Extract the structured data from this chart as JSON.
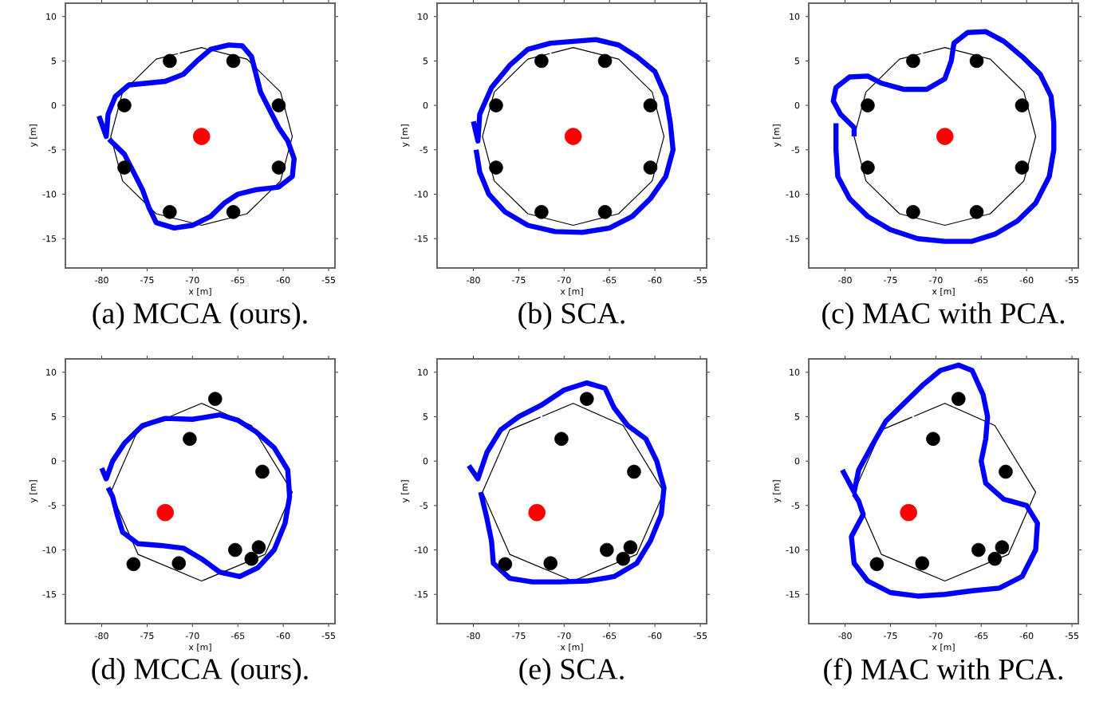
{
  "chart_data": [
    {
      "type": "line",
      "title": "(a) MCCA (ours).",
      "xlabel": "x [m]",
      "ylabel": "y [m]",
      "xlim": [
        -84,
        -54.3
      ],
      "ylim": [
        -18.3,
        11.5
      ],
      "xticks": [
        -80,
        -75,
        -70,
        -65,
        -60,
        -55
      ],
      "yticks": [
        -15,
        -10,
        -5,
        0,
        5,
        10
      ],
      "series": [
        {
          "color": "#000000",
          "x": [
            -71.4,
            -69,
            -64,
            -60.3,
            -59,
            -60.3,
            -64,
            -69,
            -74,
            -77.7,
            -79,
            -77.7,
            -74,
            -71.6
          ],
          "values": [
            5.88,
            6.5,
            5.2,
            1.5,
            -3.5,
            -8.5,
            -12.2,
            -13.5,
            -12.2,
            -8.5,
            -3.5,
            1.5,
            5.2,
            5.82
          ]
        },
        {
          "color": "#0000ff",
          "x": [
            -80.3,
            -79.5,
            -79.3,
            -78.5,
            -77,
            -75,
            -73,
            -71,
            -69.5,
            -68,
            -66,
            -64.5,
            -63.5,
            -63,
            -62.5,
            -61.5,
            -60.5,
            -59.5,
            -58.8,
            -59,
            -60.5,
            -63,
            -65,
            -66.5,
            -68,
            -70,
            -72,
            -74,
            -74.8,
            -75.5,
            -76.5,
            -77.5,
            -79.2
          ],
          "values": [
            -1.2,
            -3.5,
            -1,
            1,
            2.3,
            2.5,
            2.7,
            3.5,
            5,
            6.3,
            6.8,
            6.7,
            5.5,
            3.5,
            1.5,
            -0.5,
            -2.5,
            -4,
            -6,
            -8,
            -9.2,
            -9.5,
            -10,
            -11,
            -12.5,
            -13.5,
            -13.8,
            -13.2,
            -11.5,
            -9.5,
            -7.5,
            -5.5,
            -3.8
          ]
        },
        {
          "type": "scatter",
          "color": "#000000",
          "x": [
            -72.5,
            -65.5,
            -77.5,
            -60.5,
            -77.5,
            -60.5,
            -72.5,
            -65.5
          ],
          "values": [
            5,
            5,
            0,
            0,
            -7,
            -7,
            -12,
            -12
          ]
        },
        {
          "type": "scatter",
          "color": "#ff0000",
          "x": [
            -69
          ],
          "values": [
            -3.5
          ]
        }
      ]
    },
    {
      "type": "line",
      "title": "(b) SCA.",
      "xlabel": "x [m]",
      "ylabel": "y [m]",
      "xlim": [
        -84,
        -54.3
      ],
      "ylim": [
        -18.3,
        11.5
      ],
      "xticks": [
        -80,
        -75,
        -70,
        -65,
        -60,
        -55
      ],
      "yticks": [
        -15,
        -10,
        -5,
        0,
        5,
        10
      ],
      "series": [
        {
          "color": "#000000",
          "x": [
            -71.4,
            -69,
            -64,
            -60.3,
            -59,
            -60.3,
            -64,
            -69,
            -74,
            -77.7,
            -79,
            -77.7,
            -74,
            -71.6
          ],
          "values": [
            5.88,
            6.5,
            5.2,
            1.5,
            -3.5,
            -8.5,
            -12.2,
            -13.5,
            -12.2,
            -8.5,
            -3.5,
            1.5,
            5.2,
            5.82
          ]
        },
        {
          "color": "#0000ff",
          "x": [
            -80,
            -79.5,
            -79.3,
            -78,
            -76,
            -74,
            -71.5,
            -69,
            -66.5,
            -64,
            -62,
            -60,
            -58.8,
            -58.3,
            -58,
            -58.8,
            -60.5,
            -62.5,
            -65,
            -68,
            -71,
            -74,
            -76.5,
            -78.3,
            -79.3,
            -79.7
          ],
          "values": [
            -1.8,
            -4,
            -1,
            2,
            4.5,
            6.3,
            7,
            7.2,
            7.4,
            6.8,
            5.5,
            3.8,
            1,
            -2,
            -5,
            -8,
            -10.5,
            -12.5,
            -13.8,
            -14.3,
            -14.2,
            -13.5,
            -12,
            -10,
            -7.5,
            -5
          ]
        },
        {
          "type": "scatter",
          "color": "#000000",
          "x": [
            -72.5,
            -65.5,
            -77.5,
            -60.5,
            -77.5,
            -60.5,
            -72.5,
            -65.5
          ],
          "values": [
            5,
            5,
            0,
            0,
            -7,
            -7,
            -12,
            -12
          ]
        },
        {
          "type": "scatter",
          "color": "#ff0000",
          "x": [
            -69
          ],
          "values": [
            -3.5
          ]
        }
      ]
    },
    {
      "type": "line",
      "title": "(c) MAC with PCA.",
      "xlabel": "x [m]",
      "ylabel": "y [m]",
      "xlim": [
        -84,
        -54.3
      ],
      "ylim": [
        -18.3,
        11.5
      ],
      "xticks": [
        -80,
        -75,
        -70,
        -65,
        -60,
        -55
      ],
      "yticks": [
        -15,
        -10,
        -5,
        0,
        5,
        10
      ],
      "series": [
        {
          "color": "#000000",
          "x": [
            -71.4,
            -69,
            -64,
            -60.3,
            -59,
            -60.3,
            -64,
            -69,
            -74,
            -77.7,
            -79,
            -77.7,
            -74,
            -71.6
          ],
          "values": [
            5.88,
            6.5,
            5.2,
            1.5,
            -3.5,
            -8.5,
            -12.2,
            -13.5,
            -12.2,
            -8.5,
            -3.5,
            1.5,
            5.2,
            5.82
          ]
        },
        {
          "color": "#0000ff",
          "x": [
            -81,
            -81,
            -80.8,
            -79.5,
            -77.5,
            -75,
            -72,
            -69,
            -66,
            -63.5,
            -61,
            -59,
            -57.5,
            -57,
            -57,
            -57.3,
            -58.5,
            -60.5,
            -62.5,
            -64.5,
            -66.5,
            -68,
            -68.3,
            -69,
            -71,
            -73.5,
            -76,
            -77.5,
            -79.5,
            -81,
            -81.3,
            -80.5,
            -79,
            -79
          ],
          "values": [
            -2,
            -5,
            -8,
            -10.5,
            -12.5,
            -14,
            -15,
            -15.3,
            -15.3,
            -14.5,
            -13,
            -11,
            -8,
            -5,
            -2,
            1,
            3.5,
            5.5,
            7.2,
            8.3,
            8.2,
            7,
            5,
            3,
            1.8,
            1.8,
            2.5,
            3.3,
            3.2,
            2,
            0.5,
            -1,
            -2.5,
            -3.5
          ]
        },
        {
          "type": "scatter",
          "color": "#000000",
          "x": [
            -72.5,
            -65.5,
            -77.5,
            -60.5,
            -77.5,
            -60.5,
            -72.5,
            -65.5
          ],
          "values": [
            5,
            5,
            0,
            0,
            -7,
            -7,
            -12,
            -12
          ]
        },
        {
          "type": "scatter",
          "color": "#ff0000",
          "x": [
            -69
          ],
          "values": [
            -3.5
          ]
        }
      ]
    },
    {
      "type": "line",
      "title": "(d) MCCA (ours).",
      "xlabel": "x [m]",
      "ylabel": "y [m]",
      "xlim": [
        -84,
        -54.3
      ],
      "ylim": [
        -18.3,
        11.5
      ],
      "xticks": [
        -80,
        -75,
        -70,
        -65,
        -60,
        -55
      ],
      "yticks": [
        -15,
        -10,
        -5,
        0,
        5,
        10
      ],
      "series": [
        {
          "color": "#000000",
          "x": [
            -72.4,
            -69,
            -63.5,
            -59,
            -62,
            -69,
            -76,
            -79,
            -76,
            -72.6
          ],
          "values": [
            5.04,
            6.5,
            4,
            -3.5,
            -10.5,
            -13.5,
            -10.5,
            -3.5,
            3.5,
            4.96
          ]
        },
        {
          "color": "#0000ff",
          "x": [
            -80,
            -79.5,
            -78.8,
            -77.5,
            -75.5,
            -73,
            -70,
            -67,
            -65,
            -63,
            -61,
            -59.5,
            -59.3,
            -59.8,
            -61,
            -62.8,
            -64.8,
            -67,
            -69,
            -71,
            -73.5,
            -76,
            -77.7,
            -78.3,
            -78.8,
            -79.3
          ],
          "values": [
            -0.8,
            -2,
            0,
            2,
            4,
            4.8,
            4.7,
            5.2,
            4.6,
            3.3,
            1.5,
            -1,
            -4,
            -7,
            -10,
            -12,
            -13,
            -12.5,
            -11,
            -9.8,
            -9.5,
            -9.3,
            -8,
            -6,
            -4,
            -3
          ]
        },
        {
          "type": "scatter",
          "color": "#000000",
          "x": [
            -67.5,
            -70.3,
            -62.3,
            -65.3,
            -62.7,
            -63.5,
            -76.5,
            -71.5
          ],
          "values": [
            7,
            2.5,
            -1.2,
            -10,
            -9.7,
            -11,
            -11.6,
            -11.5
          ]
        },
        {
          "type": "scatter",
          "color": "#ff0000",
          "x": [
            -73
          ],
          "values": [
            -5.8
          ]
        }
      ]
    },
    {
      "type": "line",
      "title": "(e) SCA.",
      "xlabel": "x [m]",
      "ylabel": "y [m]",
      "xlim": [
        -84,
        -54.3
      ],
      "ylim": [
        -18.3,
        11.5
      ],
      "xticks": [
        -80,
        -75,
        -70,
        -65,
        -60,
        -55
      ],
      "yticks": [
        -15,
        -10,
        -5,
        0,
        5,
        10
      ],
      "series": [
        {
          "color": "#000000",
          "x": [
            -72.4,
            -69,
            -63.5,
            -59,
            -62,
            -69,
            -76,
            -79,
            -76,
            -72.6
          ],
          "values": [
            5.04,
            6.5,
            4,
            -3.5,
            -10.5,
            -13.5,
            -10.5,
            -3.5,
            3.5,
            4.96
          ]
        },
        {
          "color": "#0000ff",
          "x": [
            -80.5,
            -79.5,
            -78.5,
            -77,
            -75,
            -72.5,
            -70,
            -67.5,
            -65.5,
            -64.5,
            -63,
            -61,
            -59.8,
            -59,
            -59.3,
            -60.5,
            -62,
            -64.5,
            -67.5,
            -70.5,
            -73.5,
            -76,
            -77.8,
            -78,
            -78.5,
            -79.2
          ],
          "values": [
            -0.5,
            -2,
            1,
            3.5,
            5,
            6.3,
            8,
            8.8,
            8.2,
            6,
            4,
            2.5,
            0,
            -3,
            -6,
            -9,
            -11.5,
            -13,
            -13.5,
            -13.6,
            -13.6,
            -13.2,
            -11.5,
            -9,
            -6.5,
            -3.5
          ]
        },
        {
          "type": "scatter",
          "color": "#000000",
          "x": [
            -67.5,
            -70.3,
            -62.3,
            -65.3,
            -62.7,
            -63.5,
            -76.5,
            -71.5
          ],
          "values": [
            7,
            2.5,
            -1.2,
            -10,
            -9.7,
            -11,
            -11.6,
            -11.5
          ]
        },
        {
          "type": "scatter",
          "color": "#ff0000",
          "x": [
            -73
          ],
          "values": [
            -5.8
          ]
        }
      ]
    },
    {
      "type": "line",
      "title": "(f) MAC with PCA.",
      "xlabel": "x [m]",
      "ylabel": "y [m]",
      "xlim": [
        -84,
        -54.3
      ],
      "ylim": [
        -18.3,
        11.5
      ],
      "xticks": [
        -80,
        -75,
        -70,
        -65,
        -60,
        -55
      ],
      "yticks": [
        -15,
        -10,
        -5,
        0,
        5,
        10
      ],
      "series": [
        {
          "color": "#000000",
          "x": [
            -72.4,
            -69,
            -63.5,
            -59,
            -62,
            -69,
            -76,
            -79,
            -76,
            -72.6
          ],
          "values": [
            5.04,
            6.5,
            4,
            -3.5,
            -10.5,
            -13.5,
            -10.5,
            -3.5,
            3.5,
            4.96
          ]
        },
        {
          "color": "#0000ff",
          "x": [
            -80.3,
            -79,
            -78.5,
            -77,
            -75.5,
            -73.5,
            -71.5,
            -69.5,
            -67.5,
            -66,
            -64.8,
            -64.3,
            -64.5,
            -65,
            -64.5,
            -62.5,
            -60,
            -58.8,
            -59,
            -60.5,
            -63,
            -66,
            -69,
            -72,
            -75,
            -77.5,
            -79,
            -79.3,
            -78,
            -78.5,
            -79
          ],
          "values": [
            -1,
            -3.5,
            -1,
            1.8,
            4.5,
            6.5,
            8.5,
            10.2,
            10.8,
            10.2,
            7.5,
            5,
            2.5,
            0,
            -2.5,
            -4.3,
            -5,
            -7,
            -10,
            -13,
            -14.3,
            -14.6,
            -15,
            -15.2,
            -14.8,
            -13.5,
            -11.5,
            -8.5,
            -6,
            -4.5,
            -3.7
          ]
        },
        {
          "type": "scatter",
          "color": "#000000",
          "x": [
            -67.5,
            -70.3,
            -62.3,
            -65.3,
            -62.7,
            -63.5,
            -76.5,
            -71.5
          ],
          "values": [
            7,
            2.5,
            -1.2,
            -10,
            -9.7,
            -11,
            -11.6,
            -11.5
          ]
        },
        {
          "type": "scatter",
          "color": "#ff0000",
          "x": [
            -73
          ],
          "values": [
            -5.8
          ]
        }
      ]
    }
  ]
}
